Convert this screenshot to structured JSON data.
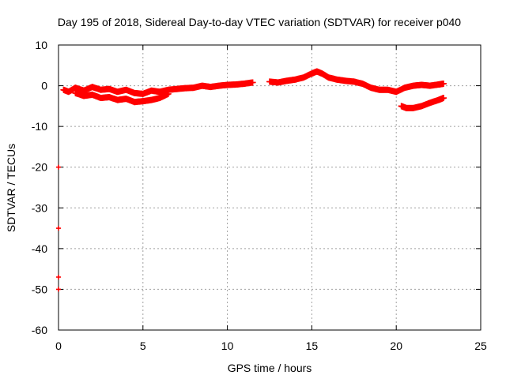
{
  "chart_data": {
    "type": "scatter",
    "title": "Day 195 of 2018, Sidereal Day-to-day VTEC variation (SDTVAR) for receiver p040",
    "xlabel": "GPS time / hours",
    "ylabel": "SDTVAR / TECUs",
    "xlim": [
      0,
      25
    ],
    "ylim": [
      -60,
      10
    ],
    "xticks": [
      0,
      5,
      10,
      15,
      20,
      25
    ],
    "yticks": [
      10,
      0,
      -10,
      -20,
      -30,
      -40,
      -50,
      -60
    ],
    "grid": true,
    "marker": "+",
    "color": "#ff0000",
    "series": [
      {
        "name": "track-a",
        "x": [
          0.3,
          0.6,
          1.0,
          1.5,
          2.0,
          2.5,
          3.0,
          3.5,
          4.0,
          4.5,
          5.0,
          5.5,
          6.0,
          6.5,
          7.0,
          7.5,
          8.0,
          8.5,
          9.0,
          9.5,
          10.0,
          10.5,
          11.0,
          11.5
        ],
        "y": [
          -1.0,
          -1.5,
          -0.5,
          -1.2,
          -0.3,
          -1.0,
          -0.8,
          -1.5,
          -1.0,
          -1.8,
          -2.0,
          -1.2,
          -1.5,
          -1.0,
          -0.8,
          -0.6,
          -0.5,
          0.0,
          -0.3,
          0.0,
          0.2,
          0.3,
          0.5,
          0.8
        ]
      },
      {
        "name": "track-b",
        "x": [
          1.0,
          1.5,
          2.0,
          2.5,
          3.0,
          3.5,
          4.0,
          4.5,
          5.0,
          5.5,
          6.0,
          6.5
        ],
        "y": [
          -1.8,
          -2.5,
          -2.2,
          -3.0,
          -2.8,
          -3.5,
          -3.2,
          -4.0,
          -3.8,
          -3.5,
          -3.0,
          -2.0
        ]
      },
      {
        "name": "track-c",
        "x": [
          12.5,
          13.0,
          13.5,
          14.0,
          14.5,
          15.0,
          15.3,
          15.6,
          16.0,
          16.5,
          17.0,
          17.5,
          18.0,
          18.5,
          19.0,
          19.5,
          20.0,
          20.5,
          21.0,
          21.5,
          22.0,
          22.5,
          22.8
        ],
        "y": [
          1.0,
          0.8,
          1.2,
          1.5,
          2.0,
          3.0,
          3.5,
          3.0,
          2.0,
          1.5,
          1.2,
          1.0,
          0.5,
          -0.5,
          -1.0,
          -1.0,
          -1.5,
          -0.5,
          0.0,
          0.2,
          0.0,
          0.3,
          0.5
        ]
      },
      {
        "name": "track-d",
        "x": [
          20.3,
          20.6,
          21.0,
          21.5,
          22.0,
          22.5,
          22.8
        ],
        "y": [
          -5.0,
          -5.5,
          -5.5,
          -5.0,
          -4.2,
          -3.5,
          -3.0
        ]
      },
      {
        "name": "outliers",
        "x": [
          0.0,
          0.0,
          0.0,
          0.0
        ],
        "y": [
          -20,
          -35,
          -47,
          -50
        ]
      }
    ]
  }
}
